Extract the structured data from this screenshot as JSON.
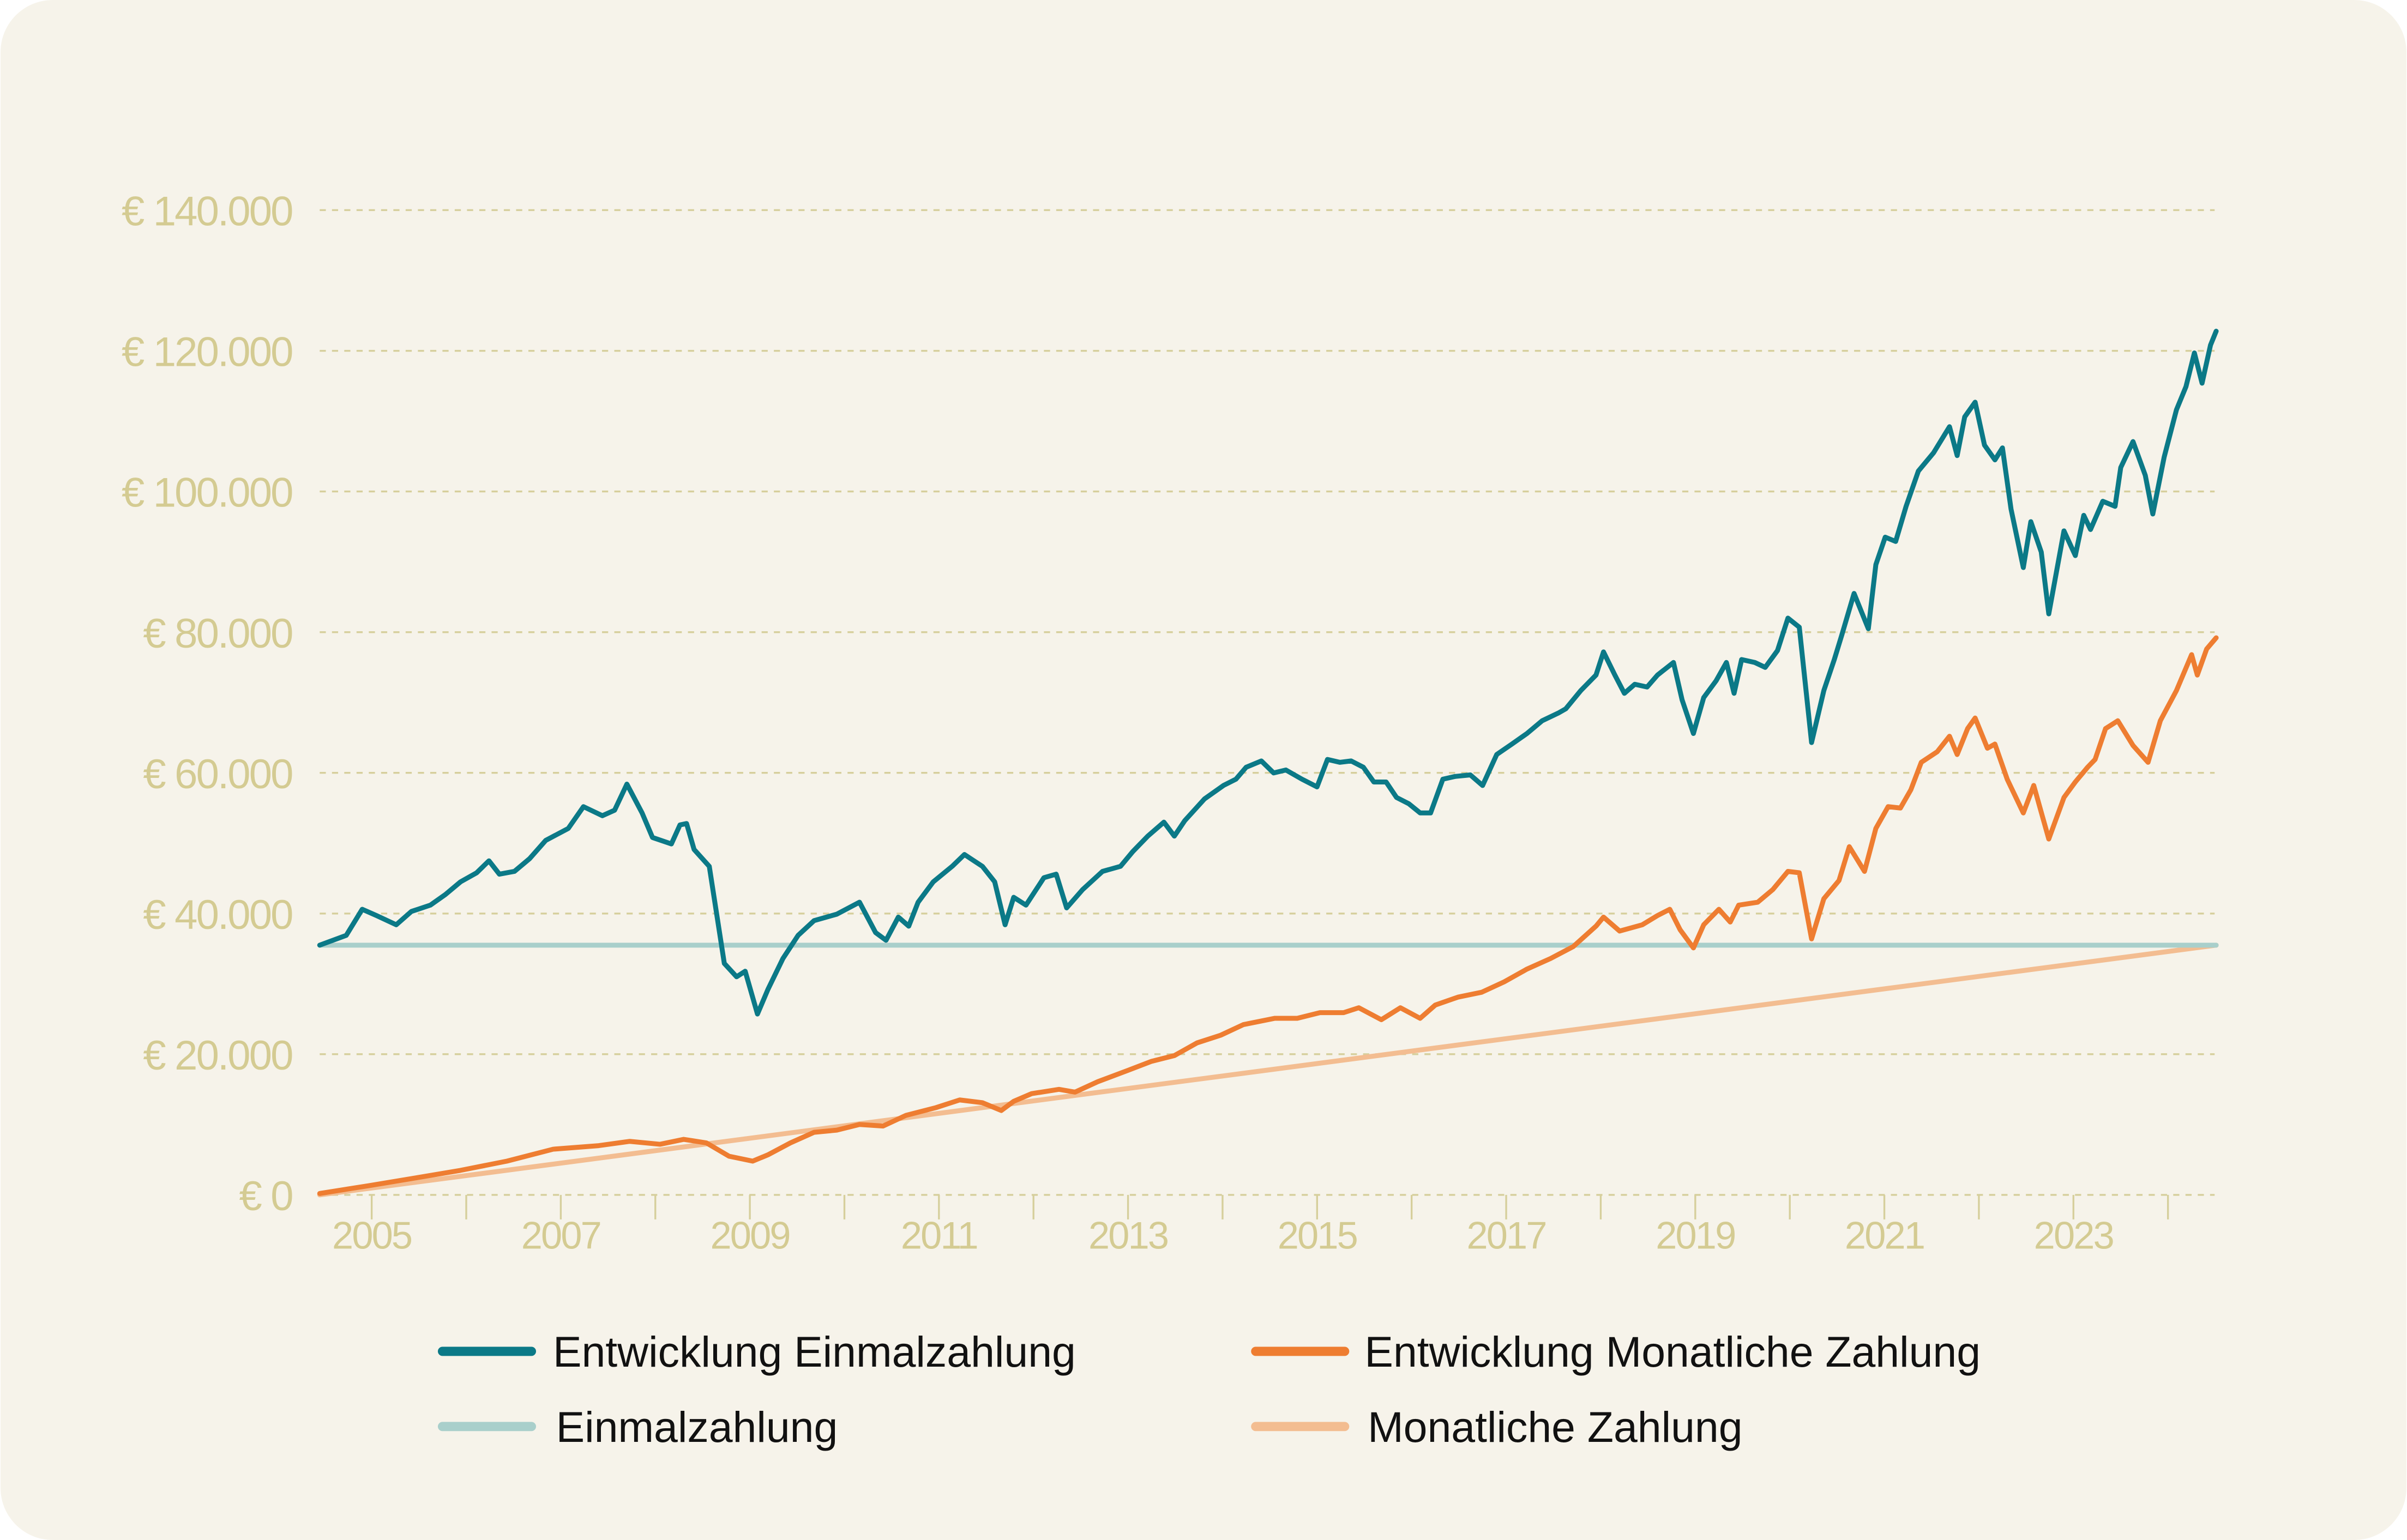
{
  "chart_data": {
    "type": "line",
    "title": "",
    "xlabel": "",
    "ylabel": "",
    "xlim": [
      2004.45,
      2024.51
    ],
    "ylim": [
      0,
      140000
    ],
    "grid": true,
    "legend_position": "bottom",
    "y_ticks": [
      {
        "value": 0,
        "label": "€ 0"
      },
      {
        "value": 20000,
        "label": "€ 20.000"
      },
      {
        "value": 40000,
        "label": "€ 40.000"
      },
      {
        "value": 60000,
        "label": "€ 60.000"
      },
      {
        "value": 80000,
        "label": "€ 80.000"
      },
      {
        "value": 100000,
        "label": "€ 100.000"
      },
      {
        "value": 120000,
        "label": "€ 120.000"
      },
      {
        "value": 140000,
        "label": "€ 140.000"
      }
    ],
    "x_tick_years": [
      2005,
      2006,
      2007,
      2008,
      2009,
      2010,
      2011,
      2012,
      2013,
      2014,
      2015,
      2016,
      2017,
      2018,
      2019,
      2020,
      2021,
      2022,
      2023,
      2024
    ],
    "x_labels": [
      "2005",
      "2007",
      "2009",
      "2011",
      "2013",
      "2015",
      "2017",
      "2019",
      "2021",
      "2023"
    ],
    "series": [
      {
        "name": "Entwicklung Einmalzahlung",
        "color": "#0b7987",
        "points": [
          [
            2004.45,
            35500
          ],
          [
            2004.73,
            36900
          ],
          [
            2004.9,
            40600
          ],
          [
            2005.05,
            39700
          ],
          [
            2005.26,
            38400
          ],
          [
            2005.42,
            40300
          ],
          [
            2005.62,
            41200
          ],
          [
            2005.78,
            42700
          ],
          [
            2005.94,
            44500
          ],
          [
            2006.11,
            45800
          ],
          [
            2006.24,
            47500
          ],
          [
            2006.35,
            45600
          ],
          [
            2006.51,
            46000
          ],
          [
            2006.67,
            47800
          ],
          [
            2006.84,
            50400
          ],
          [
            2007.08,
            52100
          ],
          [
            2007.24,
            55200
          ],
          [
            2007.44,
            53900
          ],
          [
            2007.57,
            54700
          ],
          [
            2007.7,
            58400
          ],
          [
            2007.86,
            54300
          ],
          [
            2007.97,
            50800
          ],
          [
            2008.17,
            49900
          ],
          [
            2008.26,
            52600
          ],
          [
            2008.33,
            52800
          ],
          [
            2008.41,
            49100
          ],
          [
            2008.57,
            46700
          ],
          [
            2008.73,
            32900
          ],
          [
            2008.86,
            31000
          ],
          [
            2008.95,
            31800
          ],
          [
            2009.08,
            25700
          ],
          [
            2009.19,
            29200
          ],
          [
            2009.35,
            33600
          ],
          [
            2009.51,
            36900
          ],
          [
            2009.68,
            39000
          ],
          [
            2009.92,
            39900
          ],
          [
            2010.16,
            41600
          ],
          [
            2010.33,
            37300
          ],
          [
            2010.44,
            36200
          ],
          [
            2010.57,
            39500
          ],
          [
            2010.68,
            38200
          ],
          [
            2010.78,
            41600
          ],
          [
            2010.94,
            44500
          ],
          [
            2011.14,
            46700
          ],
          [
            2011.27,
            48400
          ],
          [
            2011.46,
            46700
          ],
          [
            2011.59,
            44500
          ],
          [
            2011.7,
            38400
          ],
          [
            2011.79,
            42300
          ],
          [
            2011.92,
            41200
          ],
          [
            2012.11,
            45100
          ],
          [
            2012.24,
            45600
          ],
          [
            2012.35,
            40800
          ],
          [
            2012.52,
            43400
          ],
          [
            2012.73,
            46000
          ],
          [
            2012.92,
            46700
          ],
          [
            2013.05,
            48800
          ],
          [
            2013.21,
            51000
          ],
          [
            2013.38,
            53000
          ],
          [
            2013.49,
            51000
          ],
          [
            2013.6,
            53200
          ],
          [
            2013.81,
            56300
          ],
          [
            2014.01,
            58200
          ],
          [
            2014.14,
            59100
          ],
          [
            2014.25,
            60800
          ],
          [
            2014.41,
            61700
          ],
          [
            2014.54,
            60000
          ],
          [
            2014.67,
            60400
          ],
          [
            2014.84,
            59100
          ],
          [
            2015.0,
            58000
          ],
          [
            2015.11,
            61900
          ],
          [
            2015.24,
            61500
          ],
          [
            2015.36,
            61700
          ],
          [
            2015.49,
            60800
          ],
          [
            2015.6,
            58700
          ],
          [
            2015.73,
            58700
          ],
          [
            2015.84,
            56500
          ],
          [
            2015.97,
            55600
          ],
          [
            2016.09,
            54300
          ],
          [
            2016.2,
            54300
          ],
          [
            2016.33,
            59100
          ],
          [
            2016.46,
            59500
          ],
          [
            2016.62,
            59700
          ],
          [
            2016.75,
            58200
          ],
          [
            2016.9,
            62600
          ],
          [
            2017.06,
            64100
          ],
          [
            2017.22,
            65600
          ],
          [
            2017.38,
            67400
          ],
          [
            2017.55,
            68500
          ],
          [
            2017.63,
            69100
          ],
          [
            2017.79,
            71700
          ],
          [
            2017.95,
            73900
          ],
          [
            2018.03,
            77200
          ],
          [
            2018.15,
            73900
          ],
          [
            2018.25,
            71300
          ],
          [
            2018.36,
            72600
          ],
          [
            2018.49,
            72200
          ],
          [
            2018.6,
            73900
          ],
          [
            2018.77,
            75700
          ],
          [
            2018.86,
            70400
          ],
          [
            2018.98,
            65600
          ],
          [
            2019.09,
            70700
          ],
          [
            2019.22,
            73100
          ],
          [
            2019.33,
            75700
          ],
          [
            2019.41,
            71300
          ],
          [
            2019.49,
            76100
          ],
          [
            2019.63,
            75700
          ],
          [
            2019.74,
            75000
          ],
          [
            2019.87,
            77400
          ],
          [
            2019.98,
            82000
          ],
          [
            2020.1,
            80700
          ],
          [
            2020.23,
            64300
          ],
          [
            2020.36,
            71700
          ],
          [
            2020.47,
            76100
          ],
          [
            2020.55,
            79600
          ],
          [
            2020.68,
            85500
          ],
          [
            2020.83,
            80500
          ],
          [
            2020.91,
            89600
          ],
          [
            2021.01,
            93500
          ],
          [
            2021.12,
            92900
          ],
          [
            2021.23,
            97900
          ],
          [
            2021.36,
            102900
          ],
          [
            2021.52,
            105500
          ],
          [
            2021.69,
            109200
          ],
          [
            2021.77,
            105100
          ],
          [
            2021.85,
            110600
          ],
          [
            2021.96,
            112700
          ],
          [
            2022.06,
            106600
          ],
          [
            2022.17,
            104500
          ],
          [
            2022.25,
            106200
          ],
          [
            2022.34,
            97500
          ],
          [
            2022.47,
            89200
          ],
          [
            2022.55,
            95700
          ],
          [
            2022.66,
            91400
          ],
          [
            2022.74,
            82600
          ],
          [
            2022.9,
            94400
          ],
          [
            2023.02,
            90900
          ],
          [
            2023.11,
            96600
          ],
          [
            2023.18,
            94600
          ],
          [
            2023.31,
            98600
          ],
          [
            2023.44,
            97900
          ],
          [
            2023.5,
            103400
          ],
          [
            2023.63,
            107100
          ],
          [
            2023.76,
            102300
          ],
          [
            2023.84,
            96800
          ],
          [
            2023.96,
            104900
          ],
          [
            2024.09,
            111600
          ],
          [
            2024.19,
            114900
          ],
          [
            2024.28,
            119700
          ],
          [
            2024.36,
            115400
          ],
          [
            2024.45,
            120800
          ],
          [
            2024.51,
            122800
          ]
        ]
      },
      {
        "name": "Entwicklung Monatliche Zahlung",
        "color": "#ee7d31",
        "points": [
          [
            2004.45,
            200
          ],
          [
            2004.97,
            1300
          ],
          [
            2005.46,
            2400
          ],
          [
            2005.94,
            3500
          ],
          [
            2006.43,
            4800
          ],
          [
            2006.92,
            6500
          ],
          [
            2007.4,
            7000
          ],
          [
            2007.73,
            7600
          ],
          [
            2008.05,
            7200
          ],
          [
            2008.3,
            7900
          ],
          [
            2008.54,
            7400
          ],
          [
            2008.78,
            5500
          ],
          [
            2009.03,
            4800
          ],
          [
            2009.19,
            5700
          ],
          [
            2009.43,
            7400
          ],
          [
            2009.68,
            8900
          ],
          [
            2009.92,
            9200
          ],
          [
            2010.16,
            10000
          ],
          [
            2010.41,
            9800
          ],
          [
            2010.65,
            11300
          ],
          [
            2010.97,
            12400
          ],
          [
            2011.22,
            13500
          ],
          [
            2011.46,
            13100
          ],
          [
            2011.66,
            12000
          ],
          [
            2011.79,
            13300
          ],
          [
            2011.98,
            14400
          ],
          [
            2012.27,
            15000
          ],
          [
            2012.44,
            14600
          ],
          [
            2012.68,
            16100
          ],
          [
            2013.0,
            17700
          ],
          [
            2013.25,
            19000
          ],
          [
            2013.49,
            19800
          ],
          [
            2013.73,
            21600
          ],
          [
            2013.98,
            22700
          ],
          [
            2014.22,
            24200
          ],
          [
            2014.55,
            25100
          ],
          [
            2014.79,
            25100
          ],
          [
            2015.03,
            25900
          ],
          [
            2015.28,
            25900
          ],
          [
            2015.44,
            26600
          ],
          [
            2015.68,
            24900
          ],
          [
            2015.88,
            26600
          ],
          [
            2016.09,
            25100
          ],
          [
            2016.25,
            27000
          ],
          [
            2016.49,
            28100
          ],
          [
            2016.74,
            28800
          ],
          [
            2016.98,
            30300
          ],
          [
            2017.22,
            32100
          ],
          [
            2017.47,
            33600
          ],
          [
            2017.71,
            35300
          ],
          [
            2017.95,
            38200
          ],
          [
            2018.03,
            39500
          ],
          [
            2018.2,
            37500
          ],
          [
            2018.44,
            38400
          ],
          [
            2018.6,
            39700
          ],
          [
            2018.73,
            40600
          ],
          [
            2018.84,
            37700
          ],
          [
            2018.98,
            35100
          ],
          [
            2019.09,
            38400
          ],
          [
            2019.25,
            40600
          ],
          [
            2019.37,
            38800
          ],
          [
            2019.46,
            41200
          ],
          [
            2019.66,
            41600
          ],
          [
            2019.82,
            43400
          ],
          [
            2019.98,
            46000
          ],
          [
            2020.1,
            45800
          ],
          [
            2020.23,
            36400
          ],
          [
            2020.36,
            42100
          ],
          [
            2020.52,
            44700
          ],
          [
            2020.63,
            49500
          ],
          [
            2020.79,
            46000
          ],
          [
            2020.91,
            52100
          ],
          [
            2021.04,
            55200
          ],
          [
            2021.17,
            55000
          ],
          [
            2021.28,
            57600
          ],
          [
            2021.39,
            61500
          ],
          [
            2021.56,
            63000
          ],
          [
            2021.69,
            65200
          ],
          [
            2021.77,
            62600
          ],
          [
            2021.88,
            66300
          ],
          [
            2021.96,
            67800
          ],
          [
            2022.09,
            63500
          ],
          [
            2022.17,
            64100
          ],
          [
            2022.3,
            59100
          ],
          [
            2022.47,
            54300
          ],
          [
            2022.58,
            58200
          ],
          [
            2022.74,
            50600
          ],
          [
            2022.9,
            56500
          ],
          [
            2023.02,
            58700
          ],
          [
            2023.15,
            60800
          ],
          [
            2023.23,
            61900
          ],
          [
            2023.34,
            66300
          ],
          [
            2023.47,
            67400
          ],
          [
            2023.63,
            63900
          ],
          [
            2023.79,
            61500
          ],
          [
            2023.92,
            67400
          ],
          [
            2024.09,
            71700
          ],
          [
            2024.25,
            76800
          ],
          [
            2024.31,
            73900
          ],
          [
            2024.41,
            77600
          ],
          [
            2024.51,
            79200
          ]
        ]
      },
      {
        "name": "Einmalzahlung",
        "color": "#a9cfcb",
        "points": [
          [
            2004.45,
            35500
          ],
          [
            2024.51,
            35500
          ]
        ]
      },
      {
        "name": "Monatliche Zahlung",
        "color": "#f3bd91",
        "points": [
          [
            2004.45,
            0
          ],
          [
            2024.51,
            35500
          ]
        ]
      }
    ]
  }
}
